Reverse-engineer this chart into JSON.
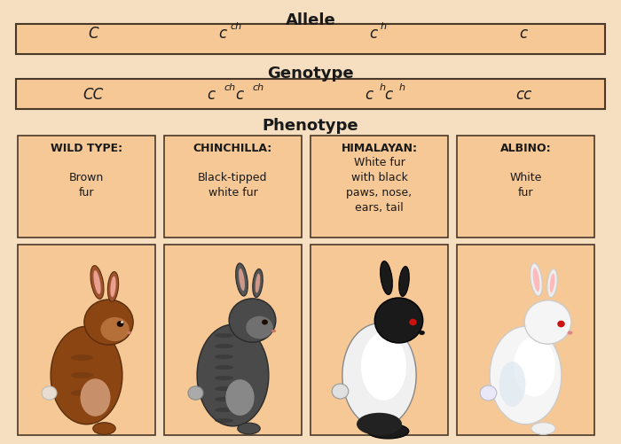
{
  "bg_color": "#f5dfc0",
  "box_color": "#f5c896",
  "border_color": "#4a3828",
  "text_color": "#1a1a1a",
  "allele_title": "Allele",
  "genotype_title": "Genotype",
  "phenotype_title": "Phenotype",
  "allele_bases": [
    "C",
    "c",
    "c",
    "c"
  ],
  "allele_sups": [
    null,
    "ch",
    "h",
    null
  ],
  "phenotype_names": [
    "WILD TYPE:",
    "CHINCHILLA:",
    "HIMALAYAN:",
    "ALBINO:"
  ],
  "phenotype_desc": [
    "Brown\nfur",
    "Black-tipped\nwhite fur",
    "White fur\nwith black\npaws, nose,\nears, tail",
    "White\nfur"
  ],
  "rabbit_types": [
    "brown",
    "chinchilla",
    "himalayan",
    "albino"
  ],
  "fig_w": 7.0,
  "fig_h": 5.02,
  "dpi": 100
}
